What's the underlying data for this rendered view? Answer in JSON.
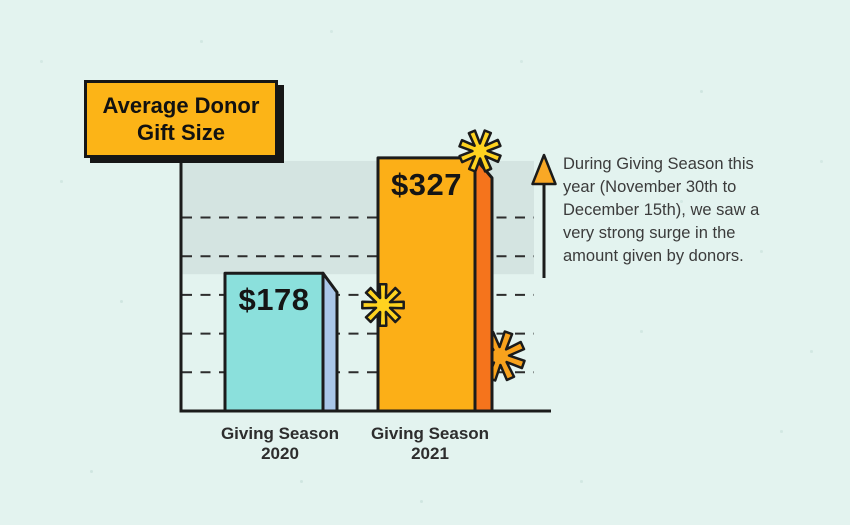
{
  "title_box": {
    "label": "Average Donor\nGift Size"
  },
  "chart_data": {
    "type": "bar",
    "title": "Average Donor Gift Size",
    "categories": [
      "Giving Season\n2020",
      "Giving Season\n2021"
    ],
    "values": [
      178,
      327
    ],
    "value_labels": [
      "$178",
      "$327"
    ],
    "ylim": [
      0,
      350
    ],
    "gridline_values": [
      50,
      100,
      150,
      200,
      250
    ],
    "grid_style": "dashed",
    "legend": "none",
    "highlight_band": {
      "from_value": 178,
      "to_value": 327
    },
    "annotation": {
      "marker": "up-arrow",
      "text": "During Giving Season this year (November 30th to December 15th), we saw a very strong surge in the amount given by donors.",
      "lines": [
        "During Giving Season this",
        "year (November 30th to",
        "December 15th), we saw a",
        "very strong surge in the",
        "amount given by donors."
      ]
    },
    "colors": {
      "background": "#E3F3EF",
      "band": "#D4E4E1",
      "ink": "#1B1B1B",
      "grid": "#2D2D2D",
      "title_box_fill": "#FCB417",
      "bar_2020_face": "#8BE0DC",
      "bar_2020_side": "#A9C6E8",
      "bar_2021_face": "#FCAF17",
      "bar_2021_side": "#F5741C",
      "sparkle_yellow": "#FFD31F",
      "sparkle_orange": "#F9A21C",
      "arrow_head": "#F9A825"
    }
  }
}
